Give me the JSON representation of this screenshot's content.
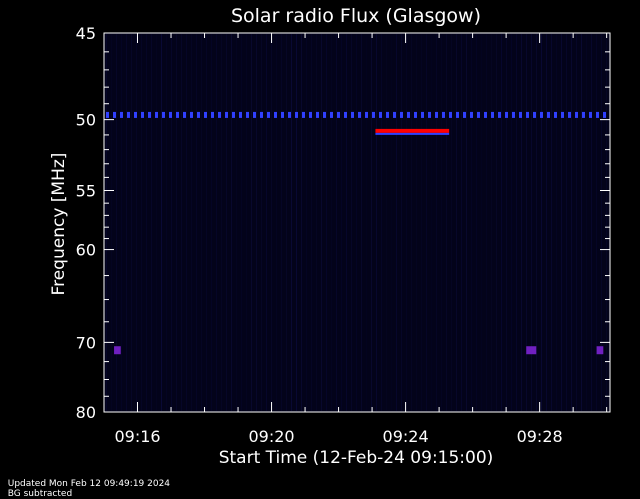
{
  "chart_data": {
    "type": "heatmap",
    "title": "Solar radio Flux (Glasgow)",
    "xlabel": "Start Time (12-Feb-24 09:15:00)",
    "ylabel": "Frequency [MHz]",
    "x_ticks": [
      "09:16",
      "09:20",
      "09:24",
      "09:28"
    ],
    "x_tick_minutes": [
      1,
      5,
      9,
      13
    ],
    "xlim_minutes": [
      0,
      15.1
    ],
    "y_ticks": [
      45,
      50,
      55,
      60,
      70,
      80
    ],
    "ylim_mhz": [
      45,
      80
    ],
    "y_scale": "reciprocal",
    "features": [
      {
        "name": "strong-band",
        "color": "#ff0000",
        "freq_mhz": 50.7,
        "start_min": 8.1,
        "end_min": 10.3
      },
      {
        "name": "interference-line",
        "color": "#3040ff",
        "freq_mhz": 49.7,
        "start_min": 0,
        "end_min": 15.1
      },
      {
        "name": "weak-spot",
        "color": "#7020c0",
        "freq_mhz": 71.0,
        "start_min": 0.3,
        "end_min": 0.5
      },
      {
        "name": "weak-spot",
        "color": "#7020c0",
        "freq_mhz": 71.0,
        "start_min": 12.6,
        "end_min": 12.9
      },
      {
        "name": "weak-spot",
        "color": "#7020c0",
        "freq_mhz": 71.0,
        "start_min": 14.7,
        "end_min": 14.9
      }
    ],
    "background_color": "#03031a",
    "grid": false
  },
  "footer": {
    "updated": "Updated Mon Feb 12 09:49:19 2024",
    "note": "BG subtracted"
  }
}
